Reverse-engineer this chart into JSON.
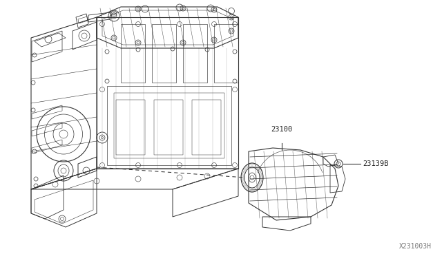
{
  "background_color": "#ffffff",
  "fig_width": 6.4,
  "fig_height": 3.72,
  "dpi": 100,
  "label_23100": "23100",
  "label_23139B": "23139B",
  "label_diagram_id": "X231003H",
  "text_color": "#222222",
  "line_color": "#333333",
  "lw": 0.7
}
